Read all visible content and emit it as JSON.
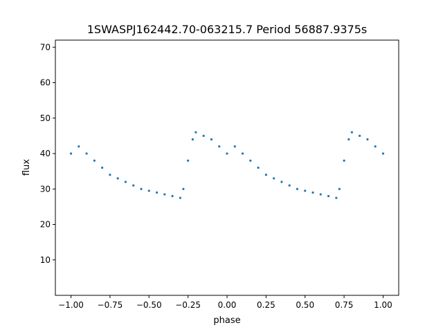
{
  "chart_data": {
    "type": "scatter",
    "title": "1SWASPJ162442.70-063215.7 Period 56887.9375s",
    "xlabel": "phase",
    "ylabel": "flux",
    "xlim": [
      -1.1,
      1.1
    ],
    "ylim": [
      0,
      72
    ],
    "xticks": [
      -1.0,
      -0.75,
      -0.5,
      -0.25,
      0.0,
      0.25,
      0.5,
      0.75,
      1.0
    ],
    "xtick_labels": [
      "−1.00",
      "−0.75",
      "−0.50",
      "−0.25",
      "0.00",
      "0.25",
      "0.50",
      "0.75",
      "1.00"
    ],
    "yticks": [
      10,
      20,
      30,
      40,
      50,
      60,
      70
    ],
    "ytick_labels": [
      "10",
      "20",
      "30",
      "40",
      "50",
      "60",
      "70"
    ],
    "grid": false,
    "marker_color": "#1f77b4",
    "series": [
      {
        "x": [
          -1.0,
          -0.95,
          -0.9,
          -0.85,
          -0.8,
          -0.75,
          -0.7,
          -0.65,
          -0.6,
          -0.55,
          -0.5,
          -0.45,
          -0.4,
          -0.35,
          -0.3,
          -0.28,
          -0.25,
          -0.22,
          -0.2,
          -0.15,
          -0.1,
          -0.05,
          0.0,
          0.05,
          0.1,
          0.15,
          0.2,
          0.25,
          0.3,
          0.35,
          0.4,
          0.45,
          0.5,
          0.55,
          0.6,
          0.65,
          0.7,
          0.72,
          0.75,
          0.78,
          0.8,
          0.85,
          0.9,
          0.95,
          1.0
        ],
        "y": [
          40,
          42,
          40,
          38,
          36,
          34,
          33,
          32,
          31,
          30,
          29.5,
          29,
          28.5,
          28,
          27.5,
          30,
          38,
          44,
          46,
          45,
          44,
          42,
          40,
          42,
          40,
          38,
          36,
          34,
          33,
          32,
          31,
          30,
          29.5,
          29,
          28.5,
          28,
          27.5,
          30,
          38,
          44,
          46,
          45,
          44,
          42,
          40
        ]
      }
    ]
  }
}
